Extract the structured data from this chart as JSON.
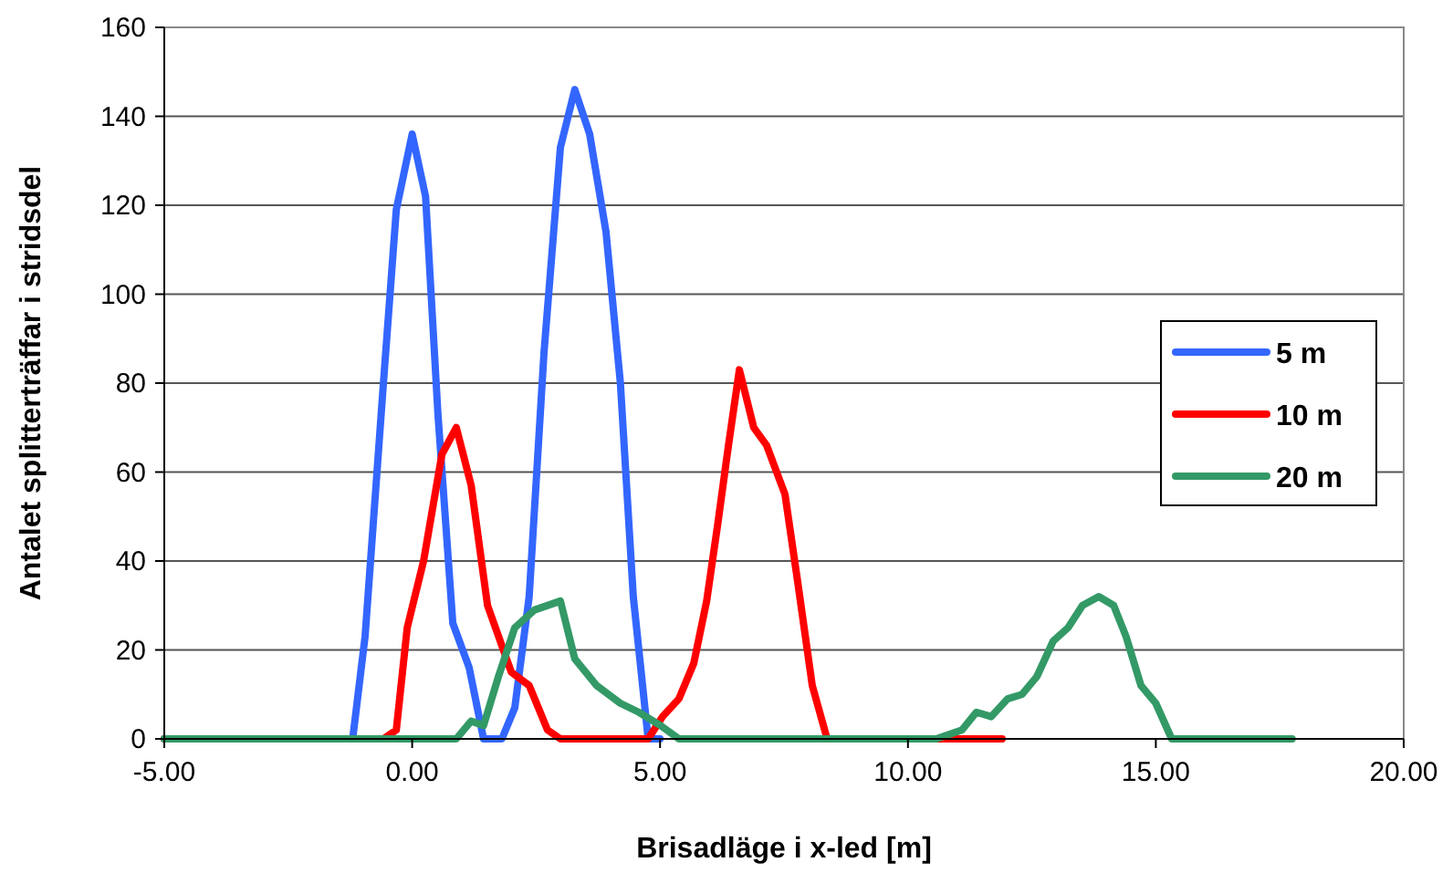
{
  "chart_data": {
    "type": "line",
    "xlabel": "Brisadläge i x-led [m]",
    "ylabel": "Antalet splitterträffar i stridsdel",
    "xlim": [
      -5,
      20
    ],
    "xticks": [
      {
        "value": -5,
        "label": "-5.00"
      },
      {
        "value": 0,
        "label": "0.00"
      },
      {
        "value": 5,
        "label": "5.00"
      },
      {
        "value": 10,
        "label": "10.00"
      },
      {
        "value": 15,
        "label": "15.00"
      },
      {
        "value": 20,
        "label": "20.00"
      }
    ],
    "ylim": [
      0,
      160
    ],
    "yticks": [
      0,
      20,
      40,
      60,
      80,
      100,
      120,
      140,
      160
    ],
    "grid": "y",
    "legend": "right",
    "marker": "none",
    "line_style": "solid",
    "series": [
      {
        "name": "5 m",
        "color": "#3366ff",
        "x": [
          -5,
          -1.2,
          -0.95,
          -0.58,
          -0.32,
          0,
          0.27,
          0.52,
          0.82,
          1.15,
          1.44,
          1.81,
          2.07,
          2.36,
          2.66,
          2.99,
          3.28,
          3.58,
          3.91,
          4.2,
          4.46,
          4.76,
          5.0
        ],
        "values": [
          0,
          0,
          23,
          80,
          119,
          136,
          122,
          73,
          26,
          16,
          0,
          0,
          7,
          32,
          87,
          133,
          146,
          136,
          114,
          80,
          32,
          0,
          0
        ]
      },
      {
        "name": "10 m",
        "color": "#ff0000",
        "x": [
          -5,
          -0.58,
          -0.32,
          -0.1,
          0.23,
          0.6,
          0.89,
          1.19,
          1.52,
          2.0,
          2.36,
          2.73,
          2.99,
          4.76,
          5.05,
          5.38,
          5.68,
          5.94,
          6.16,
          6.38,
          6.6,
          6.89,
          7.15,
          7.52,
          7.78,
          8.07,
          8.37,
          11.9
        ],
        "values": [
          0,
          0,
          2,
          25,
          40,
          64,
          70,
          57,
          30,
          15,
          12,
          2,
          0,
          0,
          5,
          9,
          17,
          31,
          48,
          66,
          83,
          70,
          66,
          55,
          35,
          12,
          0,
          0
        ]
      },
      {
        "name": "20 m",
        "color": "#339966",
        "x": [
          -5,
          0.89,
          1.19,
          1.44,
          1.74,
          2.07,
          2.47,
          2.99,
          3.28,
          3.72,
          4.2,
          4.57,
          5.01,
          5.38,
          10.57,
          11.09,
          11.38,
          11.68,
          12.01,
          12.3,
          12.6,
          12.93,
          13.23,
          13.52,
          13.85,
          14.15,
          14.4,
          14.7,
          15.0,
          15.32,
          17.75
        ],
        "values": [
          0,
          0,
          4,
          3,
          14,
          25,
          29,
          31,
          18,
          12,
          8,
          6,
          3,
          0,
          0,
          2,
          6,
          5,
          9,
          10,
          14,
          22,
          25,
          30,
          32,
          30,
          23,
          12,
          8,
          0,
          0
        ]
      }
    ]
  }
}
